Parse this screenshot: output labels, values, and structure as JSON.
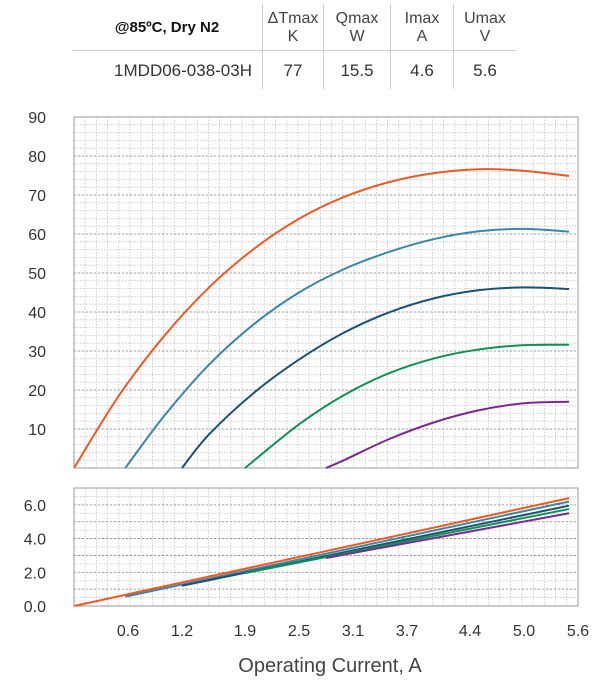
{
  "table": {
    "condition": "@85ºC, Dry N2",
    "headers": [
      {
        "name": "ΔTmax",
        "unit": "K"
      },
      {
        "name": "Qmax",
        "unit": "W"
      },
      {
        "name": "Imax",
        "unit": "A"
      },
      {
        "name": "Umax",
        "unit": "V"
      }
    ],
    "row": {
      "model": "1MDD06-038-03H",
      "dtmax": "77",
      "qmax": "15.5",
      "imax": "4.6",
      "umax": "5.6"
    }
  },
  "chart_data": {
    "type": "line",
    "xlabel": "Operating Current, A",
    "x_ticks": [
      "0.6",
      "1.2",
      "1.9",
      "2.5",
      "3.1",
      "3.7",
      "4.4",
      "5.0",
      "5.6"
    ],
    "xlim": [
      0,
      5.6
    ],
    "grid": true,
    "colors": [
      "#ec5a24",
      "#3a87a8",
      "#1c5272",
      "#119056",
      "#7c2a8c"
    ],
    "panels": [
      {
        "name": "dT",
        "ylim": [
          0,
          90
        ],
        "y_ticks": [
          "10",
          "20",
          "30",
          "40",
          "50",
          "60",
          "70",
          "80",
          "90"
        ],
        "series": [
          {
            "x": [
              0.0,
              0.5,
              1.0,
              1.5,
              2.0,
              2.5,
              3.0,
              3.5,
              4.0,
              4.5,
              5.0,
              5.5
            ],
            "y": [
              0,
              18.6,
              33.8,
              46.3,
              56.2,
              63.9,
              69.5,
              73.3,
              75.6,
              76.6,
              76.2,
              74.9
            ]
          },
          {
            "x": [
              0.57,
              1.0,
              1.5,
              2.0,
              2.5,
              3.0,
              3.5,
              4.0,
              4.5,
              5.0,
              5.5
            ],
            "y": [
              0,
              13.3,
              26.5,
              36.9,
              45.0,
              51.0,
              55.4,
              58.7,
              60.7,
              61.3,
              60.6
            ]
          },
          {
            "x": [
              1.2,
              1.5,
              2.0,
              2.5,
              3.0,
              3.5,
              4.0,
              4.5,
              5.0,
              5.5
            ],
            "y": [
              0,
              8.6,
              19.3,
              27.8,
              34.7,
              39.9,
              43.5,
              45.6,
              46.3,
              45.9
            ]
          },
          {
            "x": [
              1.9,
              2.5,
              3.0,
              3.5,
              4.0,
              4.5,
              5.0,
              5.5
            ],
            "y": [
              0,
              11.2,
              18.7,
              24.3,
              28.1,
              30.4,
              31.5,
              31.6
            ]
          },
          {
            "x": [
              2.8,
              3.0,
              3.5,
              4.0,
              4.5,
              5.0,
              5.5
            ],
            "y": [
              0,
              2.0,
              7.4,
              11.7,
              14.8,
              16.6,
              17.0
            ]
          }
        ]
      },
      {
        "name": "U",
        "ylim": [
          0,
          7
        ],
        "y_ticks": [
          "0.0",
          "2.0",
          "4.0",
          "6.0"
        ],
        "series": [
          {
            "x": [
              0.0,
              5.5
            ],
            "y": [
              0.0,
              6.4
            ]
          },
          {
            "x": [
              0.57,
              5.5
            ],
            "y": [
              0.55,
              6.2
            ]
          },
          {
            "x": [
              1.2,
              5.5
            ],
            "y": [
              1.2,
              5.95
            ]
          },
          {
            "x": [
              1.9,
              5.5
            ],
            "y": [
              1.95,
              5.75
            ]
          },
          {
            "x": [
              2.8,
              5.5
            ],
            "y": [
              2.85,
              5.5
            ]
          }
        ]
      }
    ]
  }
}
